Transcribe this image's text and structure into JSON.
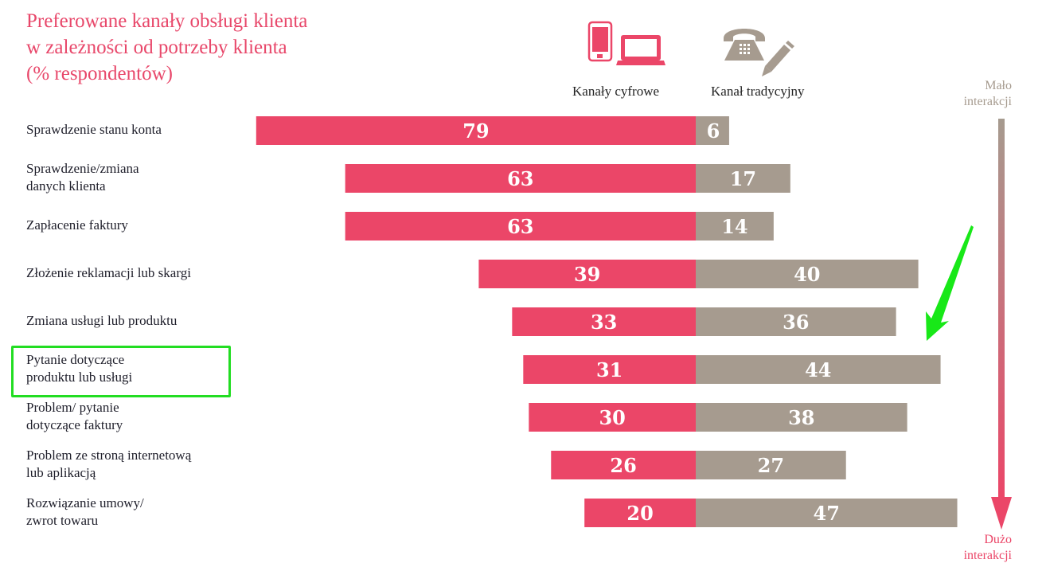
{
  "title_lines": [
    "Preferowane kanały obsługi klienta",
    "w zależności od potrzeby klienta",
    "(% respondentów)"
  ],
  "legend": {
    "digital": {
      "label": "Kanały cyfrowe",
      "icons": [
        "smartphone-icon",
        "laptop-icon"
      ],
      "color": "#eb4668"
    },
    "traditional": {
      "label": "Kanał tradycyjny",
      "icons": [
        "telephone-icon",
        "pencil-icon"
      ],
      "color": "#a69b8f"
    }
  },
  "interaction_axis": {
    "top_label_lines": [
      "Mało",
      "interakcji"
    ],
    "bottom_label_lines": [
      "Dużo",
      "interakcji"
    ],
    "top_color": "#a69b8f",
    "bottom_color": "#eb4668"
  },
  "categories_display": [
    [
      "Sprawdzenie stanu konta"
    ],
    [
      "Sprawdzenie/zmiana",
      "danych klienta"
    ],
    [
      "Zapłacenie faktury"
    ],
    [
      "Złożenie reklamacji lub skargi"
    ],
    [
      "Zmiana usługi lub produktu"
    ],
    [
      "Pytanie dotyczące",
      "produktu lub usługi"
    ],
    [
      "Problem/ pytanie",
      "dotyczące faktury"
    ],
    [
      "Problem ze stroną internetową",
      "lub aplikacją"
    ],
    [
      "Rozwiązanie umowy/",
      "zwrot towaru"
    ]
  ],
  "annotation": {
    "highlighted_category_index": 5,
    "highlight_color": "#22dd22",
    "arrow": "green-pointer-arrow"
  },
  "chart_data": {
    "type": "bar",
    "orientation": "horizontal-diverging",
    "title": "Preferowane kanały obsługi klienta w zależności od potrzeby klienta (% respondentów)",
    "xlabel": "",
    "ylabel": "",
    "categories": [
      "Sprawdzenie stanu konta",
      "Sprawdzenie/zmiana danych klienta",
      "Zapłacenie faktury",
      "Złożenie reklamacji lub skargi",
      "Zmiana usługi lub produktu",
      "Pytanie dotyczące produktu lub usługi",
      "Problem/ pytanie dotyczące faktury",
      "Problem ze stroną internetową lub aplikacją",
      "Rozwiązanie umowy/ zwrot towaru"
    ],
    "series": [
      {
        "name": "Kanały cyfrowe",
        "direction": "left",
        "color": "#eb4668",
        "values": [
          79,
          63,
          63,
          39,
          33,
          31,
          30,
          26,
          20
        ]
      },
      {
        "name": "Kanał tradycyjny",
        "direction": "right",
        "color": "#a69b8f",
        "values": [
          6,
          17,
          14,
          40,
          36,
          44,
          38,
          27,
          47
        ]
      }
    ],
    "legend_position": "top",
    "grid": false
  }
}
